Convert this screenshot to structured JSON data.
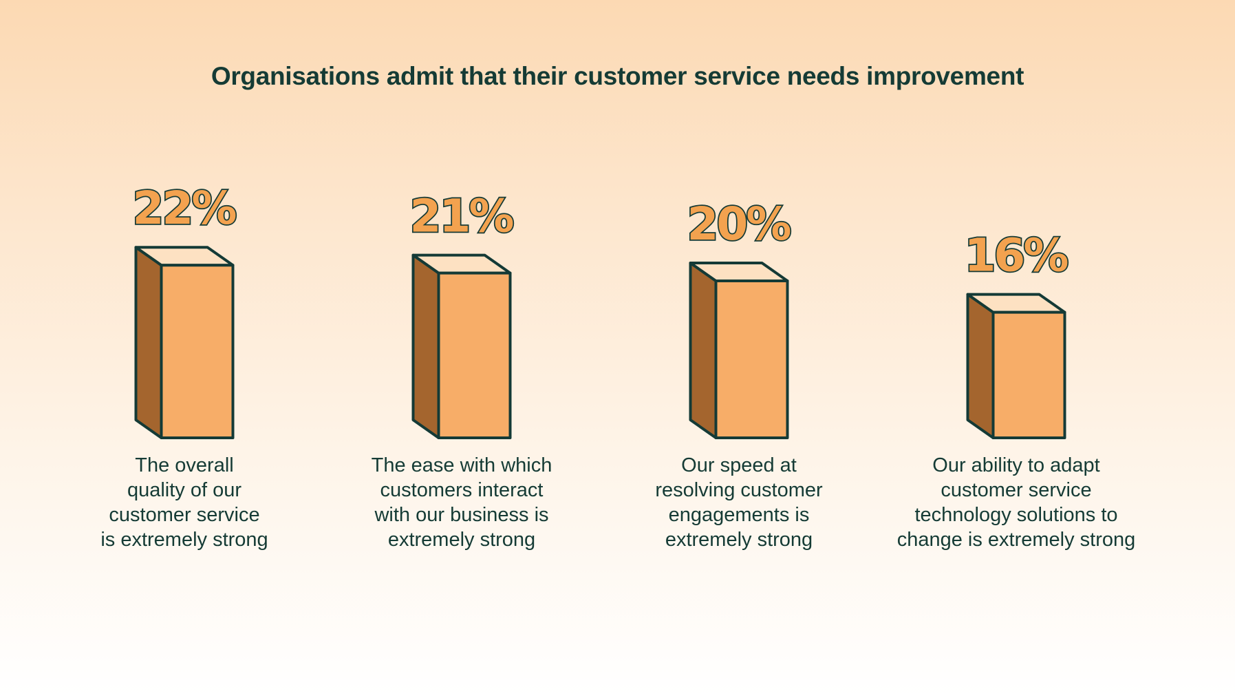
{
  "chart_data": {
    "type": "bar",
    "title": "Organisations admit that their customer service needs improvement",
    "categories": [
      "The overall quality of our customer service is extremely strong",
      "The ease with which customers interact with our business is extremely strong",
      "Our speed at resolving customer engagements is extremely strong",
      "Our ability to adapt customer service technology solutions to change is extremely strong"
    ],
    "category_lines": [
      [
        "The overall",
        "quality of our",
        "customer service",
        "is extremely strong"
      ],
      [
        "The ease with which",
        "customers interact",
        "with our business is",
        "extremely strong"
      ],
      [
        "Our speed at",
        "resolving customer",
        "engagements is",
        "extremely strong"
      ],
      [
        "Our ability to adapt",
        "customer service",
        "technology solutions to",
        "change is extremely strong"
      ]
    ],
    "values": [
      22,
      21,
      20,
      16
    ],
    "value_labels": [
      "22%",
      "21%",
      "20%",
      "16%"
    ],
    "unit": "%",
    "xlabel": "",
    "ylabel": "",
    "grid": false,
    "style": "3d-box"
  },
  "colors": {
    "front": "#f7ad68",
    "side": "#a4652e",
    "top": "#fde1c2",
    "outline": "#143a36",
    "label_fill": "#f3a24f"
  }
}
